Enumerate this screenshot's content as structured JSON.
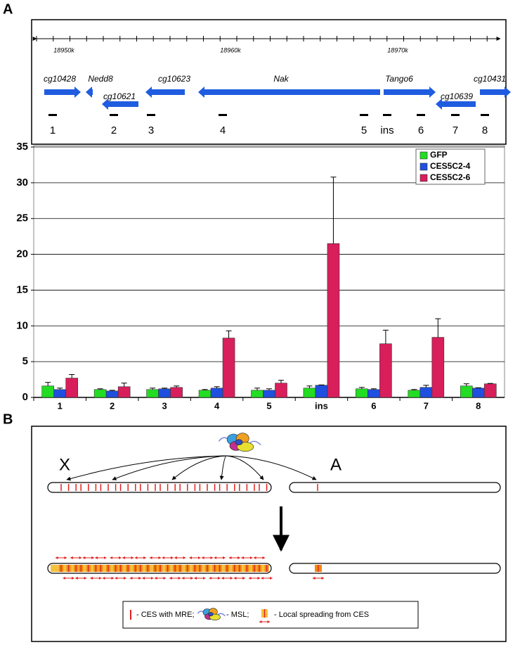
{
  "panel_a_label": "A",
  "gene_map": {
    "ruler_ticks": [
      "18950k",
      "18960k",
      "18970k"
    ],
    "genes": [
      "cg10428",
      "Nedd8",
      "cg10621",
      "cg10623",
      "Nak",
      "Tango6",
      "cg10639",
      "cg10431"
    ],
    "amplicons": [
      "1",
      "2",
      "3",
      "4",
      "5",
      "ins",
      "6",
      "7",
      "8"
    ]
  },
  "chart_data": {
    "type": "bar",
    "categories": [
      "1",
      "2",
      "3",
      "4",
      "5",
      "ins",
      "6",
      "7",
      "8"
    ],
    "series": [
      {
        "name": "GFP",
        "color": "#22dd22",
        "values": [
          1.6,
          1.1,
          1.1,
          1.0,
          1.0,
          1.3,
          1.2,
          1.0,
          1.6
        ],
        "errors": [
          0.5,
          0.1,
          0.2,
          0.1,
          0.3,
          0.3,
          0.2,
          0.1,
          0.3
        ]
      },
      {
        "name": "CES5C2-4",
        "color": "#1f4fe0",
        "values": [
          1.1,
          0.9,
          1.2,
          1.3,
          1.0,
          1.7,
          1.1,
          1.4,
          1.3
        ],
        "errors": [
          0.2,
          0.1,
          0.1,
          0.2,
          0.2,
          0.05,
          0.1,
          0.3,
          0.05
        ]
      },
      {
        "name": "CES5C2-6",
        "color": "#d81e5b",
        "values": [
          2.7,
          1.5,
          1.4,
          8.3,
          2.0,
          21.5,
          7.5,
          8.4,
          1.9
        ],
        "errors": [
          0.5,
          0.5,
          0.2,
          1.0,
          0.4,
          9.3,
          1.9,
          2.6,
          0.05
        ]
      }
    ],
    "ylim": [
      0,
      35
    ],
    "yticks": [
      0,
      5,
      10,
      15,
      20,
      25,
      30,
      35
    ],
    "grid": true,
    "legend": "top-right"
  },
  "panel_b_label": "B",
  "diagram": {
    "chromosomes": [
      "X",
      "A"
    ],
    "legend": [
      "- CES with MRE;",
      "- MSL;",
      "- Local spreading from CES"
    ]
  }
}
